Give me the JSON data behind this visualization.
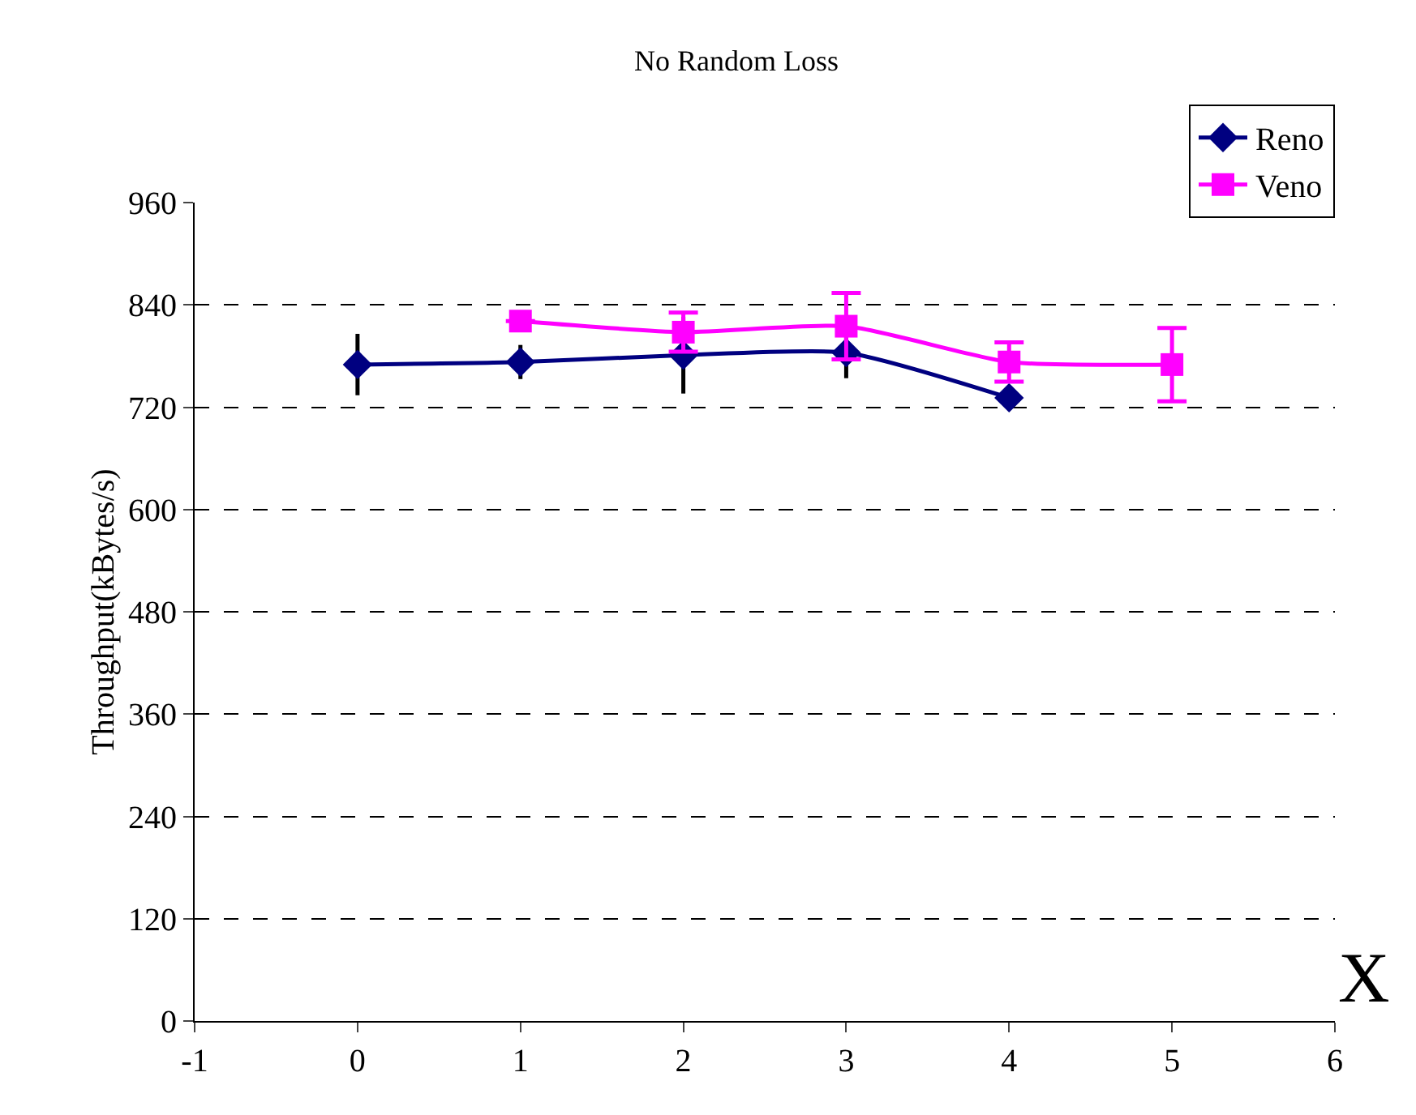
{
  "chart_data": {
    "type": "line",
    "title": "No Random Loss",
    "xlabel": "X",
    "ylabel": "Throughput(kBytes/s)",
    "xlim": [
      -1,
      6
    ],
    "xticks": [
      -1,
      0,
      1,
      2,
      3,
      4,
      5,
      6
    ],
    "ylim": [
      0,
      960
    ],
    "yticks": [
      0,
      120,
      240,
      360,
      480,
      600,
      720,
      840,
      960
    ],
    "grid": "y",
    "legend": "top right",
    "series": [
      {
        "name": "Reno",
        "color": "#000080",
        "marker": "diamond",
        "x": [
          0,
          1,
          2,
          3,
          4
        ],
        "values": [
          770,
          773,
          781,
          784,
          731
        ],
        "errors": [
          36,
          20,
          45,
          30,
          null
        ]
      },
      {
        "name": "Veno",
        "color": "#ff00ff",
        "marker": "square",
        "x": [
          1,
          2,
          3,
          4,
          5
        ],
        "values": [
          821,
          808,
          815,
          773,
          770
        ],
        "errors": [
          null,
          23,
          39,
          23,
          43
        ]
      }
    ]
  }
}
